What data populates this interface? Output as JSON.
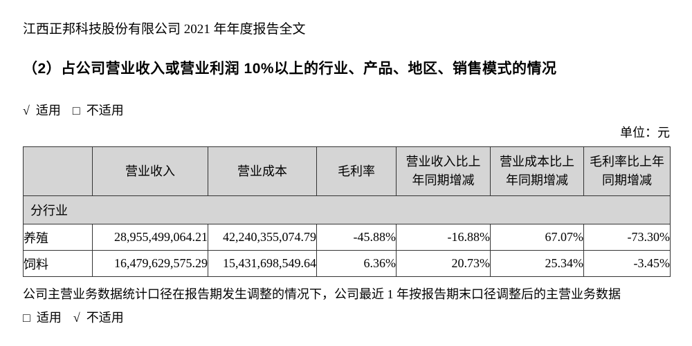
{
  "page": {
    "doc_header": "江西正邦科技股份有限公司 2021 年年度报告全文",
    "section_title": "（2）占公司营业收入或营业利润 10%以上的行业、产品、地区、销售模式的情况",
    "unit_label": "单位：元",
    "note": "公司主营业务数据统计口径在报告期发生调整的情况下，公司最近 1 年按报告期末口径调整后的主营业务数据",
    "applicability_top": {
      "applicable_mark": "√",
      "applicable_label": "适用",
      "not_applicable_mark": "□",
      "not_applicable_label": "不适用"
    },
    "applicability_bottom": {
      "applicable_mark": "□",
      "applicable_label": "适用",
      "not_applicable_mark": "√",
      "not_applicable_label": "不适用"
    }
  },
  "table": {
    "columns": [
      "",
      "营业收入",
      "营业成本",
      "毛利率",
      "营业收入比上年同期增减",
      "营业成本比上年同期增减",
      "毛利率比上年同期增减"
    ],
    "section_row_label": "分行业",
    "rows": [
      [
        "养殖",
        "28,955,499,064.21",
        "42,240,355,074.79",
        "-45.88%",
        "-16.88%",
        "67.07%",
        "-73.30%"
      ],
      [
        "饲料",
        "16,479,629,575.29",
        "15,431,698,549.64",
        "6.36%",
        "20.73%",
        "25.34%",
        "-3.45%"
      ]
    ],
    "colors": {
      "header_bg": "#d5d5d5",
      "border": "#333333",
      "text": "#000000",
      "page_bg": "#ffffff"
    }
  }
}
